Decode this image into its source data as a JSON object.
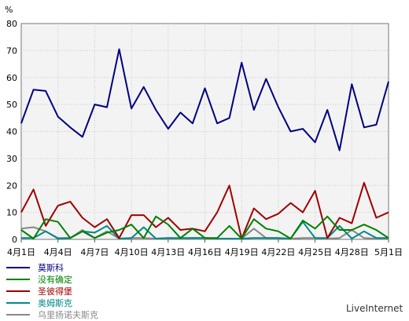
{
  "chart_data": {
    "type": "line",
    "ylabel": "%",
    "ylim": [
      0,
      80
    ],
    "yticks": [
      0,
      10,
      20,
      30,
      40,
      50,
      60,
      70,
      80
    ],
    "x": [
      "4月1日",
      "4月2日",
      "4月3日",
      "4月4日",
      "4月5日",
      "4月6日",
      "4月7日",
      "4月8日",
      "4月9日",
      "4月10日",
      "4月11日",
      "4月12日",
      "4月13日",
      "4月14日",
      "4月15日",
      "4月16日",
      "4月17日",
      "4月18日",
      "4月19日",
      "4月20日",
      "4月21日",
      "4月22日",
      "4月23日",
      "4月24日",
      "4月25日",
      "4月26日",
      "4月27日",
      "4月28日",
      "4月29日",
      "4月30日",
      "5月1日"
    ],
    "x_tick_labels": [
      "4月1日",
      "4月4日",
      "4月7日",
      "4月10日",
      "4月13日",
      "4月16日",
      "4月19日",
      "4月22日",
      "4月25日",
      "4月28日",
      "5月1日"
    ],
    "grid": true,
    "legend_position": "bottom-left",
    "series": [
      {
        "name": "莫斯科",
        "color": "#000080",
        "values": [
          43,
          55.5,
          55,
          45.5,
          41.5,
          38,
          50,
          49,
          70.5,
          48.5,
          56.5,
          48,
          41,
          47,
          43,
          56,
          43,
          45,
          65.5,
          48,
          59.5,
          49,
          40,
          41,
          36,
          48,
          33,
          57.5,
          41.5,
          42.5,
          58.5
        ]
      },
      {
        "name": "没有确定",
        "color": "#008000",
        "values": [
          3.5,
          0.3,
          7.5,
          6.5,
          0.5,
          3,
          0.5,
          2.5,
          3.5,
          5.5,
          0.5,
          8.5,
          5.5,
          0.5,
          4,
          0.5,
          0.5,
          5,
          0.3,
          7.5,
          4,
          3,
          0.3,
          7,
          4,
          8.5,
          3.5,
          3.5,
          5.5,
          3.5,
          0.5
        ]
      },
      {
        "name": "圣彼得堡",
        "color": "#a00000",
        "values": [
          10,
          18.5,
          5,
          12.5,
          14,
          8,
          4.5,
          7.5,
          0.5,
          9,
          9,
          4.5,
          8,
          3.5,
          4,
          3,
          10,
          20,
          0.3,
          11.5,
          7.5,
          9.5,
          13.5,
          10,
          18,
          0.5,
          8,
          6,
          21,
          8,
          10
        ]
      },
      {
        "name": "奥姆斯克",
        "color": "#008888",
        "values": [
          0.5,
          0.5,
          3,
          0.3,
          0.5,
          3,
          2.5,
          5,
          0.3,
          0.5,
          4.5,
          0.3,
          0.5,
          0.5,
          0.5,
          0.5,
          0.3,
          0.3,
          0.3,
          0.5,
          0.5,
          0.5,
          0.3,
          6.5,
          0.5,
          0.5,
          5,
          0.3,
          3,
          0.5,
          0.5
        ]
      },
      {
        "name": "乌里扬诺夫斯克",
        "color": "#888888",
        "values": [
          4,
          4.5,
          3,
          0.5,
          0.5,
          3.5,
          0.5,
          3,
          0.3,
          0.5,
          0.5,
          0.3,
          0.5,
          0.3,
          0.5,
          0.5,
          0.3,
          0.3,
          0.3,
          4,
          0.5,
          0.5,
          0.3,
          0.5,
          0.5,
          0.3,
          0.5,
          3.5,
          0.5,
          0.3,
          0.5
        ]
      }
    ]
  },
  "watermark": "LiveInternet"
}
